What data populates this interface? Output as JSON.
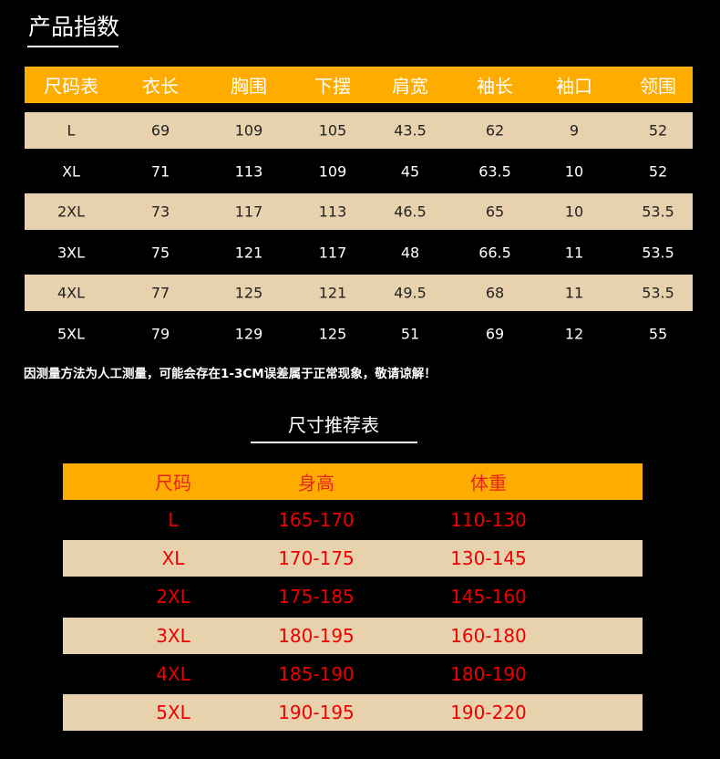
{
  "product_table": {
    "title": "产品指数",
    "headers": [
      "尺码表",
      "衣长",
      "胸围",
      "下摆",
      "肩宽",
      "袖长",
      "袖口",
      "领围"
    ],
    "rows": [
      [
        "L",
        "69",
        "109",
        "105",
        "43.5",
        "62",
        "9",
        "52"
      ],
      [
        "XL",
        "71",
        "113",
        "109",
        "45",
        "63.5",
        "10",
        "52"
      ],
      [
        "2XL",
        "73",
        "117",
        "113",
        "46.5",
        "65",
        "10",
        "53.5"
      ],
      [
        "3XL",
        "75",
        "121",
        "117",
        "48",
        "66.5",
        "11",
        "53.5"
      ],
      [
        "4XL",
        "77",
        "125",
        "121",
        "49.5",
        "68",
        "11",
        "53.5"
      ],
      [
        "5XL",
        "79",
        "129",
        "125",
        "51",
        "69",
        "12",
        "55"
      ]
    ],
    "note": "因测量方法为人工测量，可能会存在1-3CM误差属于正常现象，敬请谅解！"
  },
  "recommend_table": {
    "title": "尺寸推荐表",
    "headers": [
      "尺码",
      "身高",
      "体重"
    ],
    "rows": [
      [
        "L",
        "165-170",
        "110-130"
      ],
      [
        "XL",
        "170-175",
        "130-145"
      ],
      [
        "2XL",
        "175-185",
        "145-160"
      ],
      [
        "3XL",
        "180-195",
        "160-180"
      ],
      [
        "4XL",
        "185-190",
        "180-190"
      ],
      [
        "5XL",
        "190-195",
        "190-220"
      ]
    ]
  },
  "colors": {
    "header": "#ffac00",
    "stripe": "#e8d2ad",
    "background": "#000000",
    "recommend_text": "#e00000"
  }
}
